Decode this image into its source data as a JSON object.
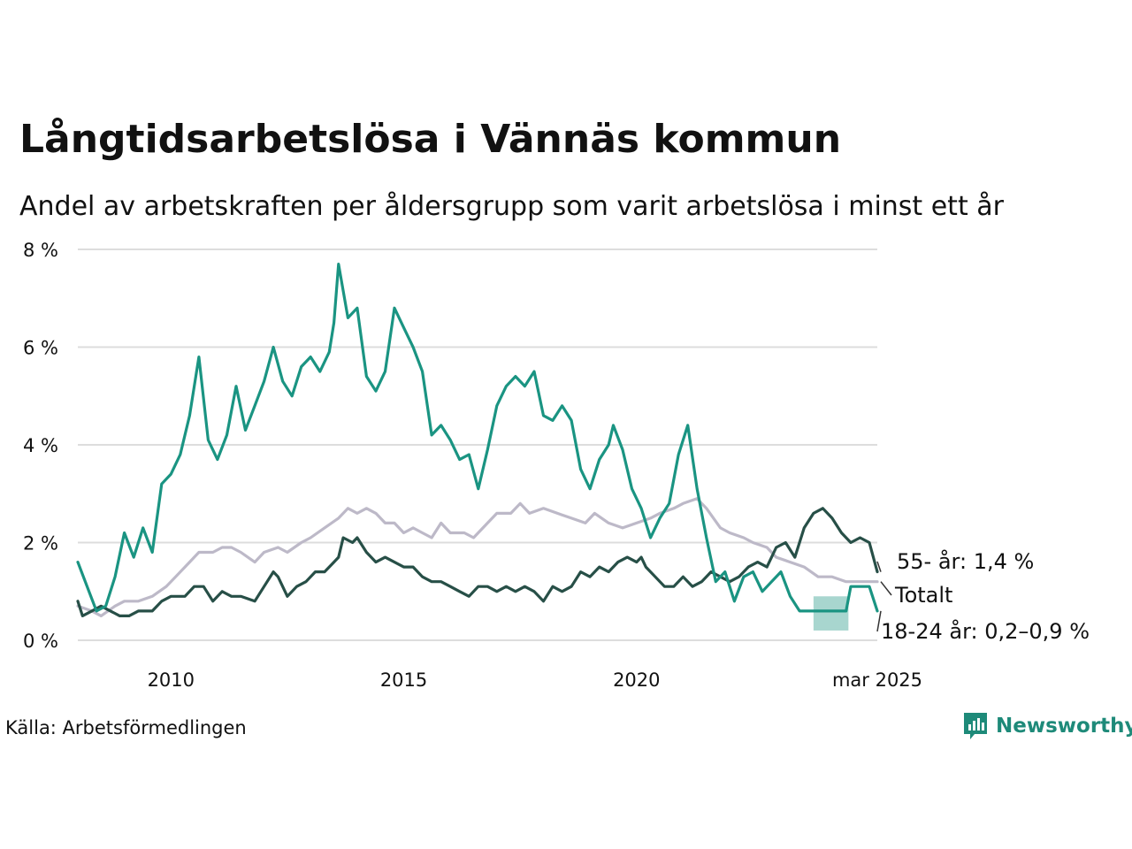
{
  "header": {
    "title": "Långtidsarbetslösa i Vännäs kommun",
    "subtitle": "Andel av arbetskraften per åldersgrupp som varit arbetslösa i minst ett år"
  },
  "footer": {
    "source": "Källa: Arbetsförmedlingen",
    "brand": "Newsworthy"
  },
  "colors": {
    "youth": "#1a9482",
    "youth_band": "#a8d6cf",
    "senior": "#274f47",
    "total": "#bdb9c8",
    "grid": "#dddddd"
  },
  "chart_data": {
    "type": "line",
    "title": "Långtidsarbetslösa i Vännäs kommun",
    "subtitle": "Andel av arbetskraften per åldersgrupp som varit arbetslösa i minst ett år",
    "xlabel": "",
    "ylabel": "",
    "x_range": [
      2008.0,
      2025.17
    ],
    "ylim": [
      0,
      8
    ],
    "x_ticks": [
      {
        "value": 2010,
        "label": "2010"
      },
      {
        "value": 2015,
        "label": "2015"
      },
      {
        "value": 2020,
        "label": "2020"
      },
      {
        "value": 2025.17,
        "label": "mar 2025"
      }
    ],
    "y_ticks": [
      {
        "value": 0,
        "label": "0 %"
      },
      {
        "value": 2,
        "label": "2 %"
      },
      {
        "value": 4,
        "label": "4 %"
      },
      {
        "value": 6,
        "label": "6 %"
      },
      {
        "value": 8,
        "label": "8 %"
      }
    ],
    "grid": true,
    "legend": "direct-labels-right",
    "end_labels": [
      {
        "series": "55- år",
        "text": "55- år: 1,4 %"
      },
      {
        "series": "Totalt",
        "text": "Totalt"
      },
      {
        "series": "18-24 år",
        "text": "18-24 år: 0,2–0,9 %"
      }
    ],
    "series": [
      {
        "name": "Totalt",
        "points": [
          [
            2008.0,
            0.7
          ],
          [
            2008.3,
            0.6
          ],
          [
            2008.5,
            0.5
          ],
          [
            2008.8,
            0.7
          ],
          [
            2009.0,
            0.8
          ],
          [
            2009.3,
            0.8
          ],
          [
            2009.6,
            0.9
          ],
          [
            2009.9,
            1.1
          ],
          [
            2010.1,
            1.3
          ],
          [
            2010.4,
            1.6
          ],
          [
            2010.6,
            1.8
          ],
          [
            2010.9,
            1.8
          ],
          [
            2011.1,
            1.9
          ],
          [
            2011.3,
            1.9
          ],
          [
            2011.5,
            1.8
          ],
          [
            2011.8,
            1.6
          ],
          [
            2012.0,
            1.8
          ],
          [
            2012.3,
            1.9
          ],
          [
            2012.5,
            1.8
          ],
          [
            2012.8,
            2.0
          ],
          [
            2013.0,
            2.1
          ],
          [
            2013.3,
            2.3
          ],
          [
            2013.6,
            2.5
          ],
          [
            2013.8,
            2.7
          ],
          [
            2014.0,
            2.6
          ],
          [
            2014.2,
            2.7
          ],
          [
            2014.4,
            2.6
          ],
          [
            2014.6,
            2.4
          ],
          [
            2014.8,
            2.4
          ],
          [
            2015.0,
            2.2
          ],
          [
            2015.2,
            2.3
          ],
          [
            2015.4,
            2.2
          ],
          [
            2015.6,
            2.1
          ],
          [
            2015.8,
            2.4
          ],
          [
            2016.0,
            2.2
          ],
          [
            2016.3,
            2.2
          ],
          [
            2016.5,
            2.1
          ],
          [
            2016.8,
            2.4
          ],
          [
            2017.0,
            2.6
          ],
          [
            2017.3,
            2.6
          ],
          [
            2017.5,
            2.8
          ],
          [
            2017.7,
            2.6
          ],
          [
            2018.0,
            2.7
          ],
          [
            2018.3,
            2.6
          ],
          [
            2018.6,
            2.5
          ],
          [
            2018.9,
            2.4
          ],
          [
            2019.1,
            2.6
          ],
          [
            2019.4,
            2.4
          ],
          [
            2019.7,
            2.3
          ],
          [
            2020.0,
            2.4
          ],
          [
            2020.3,
            2.5
          ],
          [
            2020.5,
            2.6
          ],
          [
            2020.8,
            2.7
          ],
          [
            2021.0,
            2.8
          ],
          [
            2021.3,
            2.9
          ],
          [
            2021.5,
            2.7
          ],
          [
            2021.8,
            2.3
          ],
          [
            2022.0,
            2.2
          ],
          [
            2022.3,
            2.1
          ],
          [
            2022.5,
            2.0
          ],
          [
            2022.8,
            1.9
          ],
          [
            2023.0,
            1.7
          ],
          [
            2023.3,
            1.6
          ],
          [
            2023.6,
            1.5
          ],
          [
            2023.9,
            1.3
          ],
          [
            2024.2,
            1.3
          ],
          [
            2024.5,
            1.2
          ],
          [
            2024.8,
            1.2
          ],
          [
            2025.17,
            1.2
          ]
        ]
      },
      {
        "name": "55- år",
        "points": [
          [
            2008.0,
            0.8
          ],
          [
            2008.1,
            0.5
          ],
          [
            2008.3,
            0.6
          ],
          [
            2008.5,
            0.7
          ],
          [
            2008.7,
            0.6
          ],
          [
            2008.9,
            0.5
          ],
          [
            2009.1,
            0.5
          ],
          [
            2009.3,
            0.6
          ],
          [
            2009.6,
            0.6
          ],
          [
            2009.8,
            0.8
          ],
          [
            2010.0,
            0.9
          ],
          [
            2010.3,
            0.9
          ],
          [
            2010.5,
            1.1
          ],
          [
            2010.7,
            1.1
          ],
          [
            2010.9,
            0.8
          ],
          [
            2011.1,
            1.0
          ],
          [
            2011.3,
            0.9
          ],
          [
            2011.5,
            0.9
          ],
          [
            2011.8,
            0.8
          ],
          [
            2012.0,
            1.1
          ],
          [
            2012.2,
            1.4
          ],
          [
            2012.3,
            1.3
          ],
          [
            2012.5,
            0.9
          ],
          [
            2012.7,
            1.1
          ],
          [
            2012.9,
            1.2
          ],
          [
            2013.1,
            1.4
          ],
          [
            2013.3,
            1.4
          ],
          [
            2013.5,
            1.6
          ],
          [
            2013.6,
            1.7
          ],
          [
            2013.7,
            2.1
          ],
          [
            2013.9,
            2.0
          ],
          [
            2014.0,
            2.1
          ],
          [
            2014.2,
            1.8
          ],
          [
            2014.4,
            1.6
          ],
          [
            2014.6,
            1.7
          ],
          [
            2014.8,
            1.6
          ],
          [
            2015.0,
            1.5
          ],
          [
            2015.2,
            1.5
          ],
          [
            2015.4,
            1.3
          ],
          [
            2015.6,
            1.2
          ],
          [
            2015.8,
            1.2
          ],
          [
            2016.0,
            1.1
          ],
          [
            2016.2,
            1.0
          ],
          [
            2016.4,
            0.9
          ],
          [
            2016.6,
            1.1
          ],
          [
            2016.8,
            1.1
          ],
          [
            2017.0,
            1.0
          ],
          [
            2017.2,
            1.1
          ],
          [
            2017.4,
            1.0
          ],
          [
            2017.6,
            1.1
          ],
          [
            2017.8,
            1.0
          ],
          [
            2018.0,
            0.8
          ],
          [
            2018.2,
            1.1
          ],
          [
            2018.4,
            1.0
          ],
          [
            2018.6,
            1.1
          ],
          [
            2018.8,
            1.4
          ],
          [
            2019.0,
            1.3
          ],
          [
            2019.2,
            1.5
          ],
          [
            2019.4,
            1.4
          ],
          [
            2019.6,
            1.6
          ],
          [
            2019.8,
            1.7
          ],
          [
            2020.0,
            1.6
          ],
          [
            2020.1,
            1.7
          ],
          [
            2020.2,
            1.5
          ],
          [
            2020.4,
            1.3
          ],
          [
            2020.6,
            1.1
          ],
          [
            2020.8,
            1.1
          ],
          [
            2021.0,
            1.3
          ],
          [
            2021.2,
            1.1
          ],
          [
            2021.4,
            1.2
          ],
          [
            2021.6,
            1.4
          ],
          [
            2021.8,
            1.3
          ],
          [
            2022.0,
            1.2
          ],
          [
            2022.2,
            1.3
          ],
          [
            2022.4,
            1.5
          ],
          [
            2022.6,
            1.6
          ],
          [
            2022.8,
            1.5
          ],
          [
            2023.0,
            1.9
          ],
          [
            2023.2,
            2.0
          ],
          [
            2023.4,
            1.7
          ],
          [
            2023.6,
            2.3
          ],
          [
            2023.8,
            2.6
          ],
          [
            2024.0,
            2.7
          ],
          [
            2024.2,
            2.5
          ],
          [
            2024.4,
            2.2
          ],
          [
            2024.6,
            2.0
          ],
          [
            2024.8,
            2.1
          ],
          [
            2025.0,
            2.0
          ],
          [
            2025.17,
            1.4
          ]
        ]
      },
      {
        "name": "18-24 år",
        "points": [
          [
            2008.0,
            1.6
          ],
          [
            2008.2,
            1.1
          ],
          [
            2008.4,
            0.6
          ],
          [
            2008.6,
            0.7
          ],
          [
            2008.8,
            1.3
          ],
          [
            2009.0,
            2.2
          ],
          [
            2009.2,
            1.7
          ],
          [
            2009.4,
            2.3
          ],
          [
            2009.6,
            1.8
          ],
          [
            2009.8,
            3.2
          ],
          [
            2010.0,
            3.4
          ],
          [
            2010.2,
            3.8
          ],
          [
            2010.4,
            4.6
          ],
          [
            2010.6,
            5.8
          ],
          [
            2010.8,
            4.1
          ],
          [
            2011.0,
            3.7
          ],
          [
            2011.2,
            4.2
          ],
          [
            2011.4,
            5.2
          ],
          [
            2011.6,
            4.3
          ],
          [
            2011.8,
            4.8
          ],
          [
            2012.0,
            5.3
          ],
          [
            2012.2,
            6.0
          ],
          [
            2012.4,
            5.3
          ],
          [
            2012.6,
            5.0
          ],
          [
            2012.8,
            5.6
          ],
          [
            2013.0,
            5.8
          ],
          [
            2013.2,
            5.5
          ],
          [
            2013.4,
            5.9
          ],
          [
            2013.5,
            6.5
          ],
          [
            2013.6,
            7.7
          ],
          [
            2013.8,
            6.6
          ],
          [
            2014.0,
            6.8
          ],
          [
            2014.2,
            5.4
          ],
          [
            2014.4,
            5.1
          ],
          [
            2014.6,
            5.5
          ],
          [
            2014.8,
            6.8
          ],
          [
            2015.0,
            6.4
          ],
          [
            2015.2,
            6.0
          ],
          [
            2015.4,
            5.5
          ],
          [
            2015.6,
            4.2
          ],
          [
            2015.8,
            4.4
          ],
          [
            2016.0,
            4.1
          ],
          [
            2016.2,
            3.7
          ],
          [
            2016.4,
            3.8
          ],
          [
            2016.6,
            3.1
          ],
          [
            2016.8,
            3.9
          ],
          [
            2017.0,
            4.8
          ],
          [
            2017.2,
            5.2
          ],
          [
            2017.4,
            5.4
          ],
          [
            2017.6,
            5.2
          ],
          [
            2017.8,
            5.5
          ],
          [
            2018.0,
            4.6
          ],
          [
            2018.2,
            4.5
          ],
          [
            2018.4,
            4.8
          ],
          [
            2018.6,
            4.5
          ],
          [
            2018.8,
            3.5
          ],
          [
            2019.0,
            3.1
          ],
          [
            2019.2,
            3.7
          ],
          [
            2019.4,
            4.0
          ],
          [
            2019.5,
            4.4
          ],
          [
            2019.7,
            3.9
          ],
          [
            2019.9,
            3.1
          ],
          [
            2020.1,
            2.7
          ],
          [
            2020.3,
            2.1
          ],
          [
            2020.5,
            2.5
          ],
          [
            2020.7,
            2.8
          ],
          [
            2020.9,
            3.8
          ],
          [
            2021.1,
            4.4
          ],
          [
            2021.3,
            3.1
          ],
          [
            2021.5,
            2.1
          ],
          [
            2021.7,
            1.2
          ],
          [
            2021.9,
            1.4
          ],
          [
            2022.1,
            0.8
          ],
          [
            2022.3,
            1.3
          ],
          [
            2022.5,
            1.4
          ],
          [
            2022.7,
            1.0
          ],
          [
            2022.9,
            1.2
          ],
          [
            2023.1,
            1.4
          ],
          [
            2023.3,
            0.9
          ],
          [
            2023.5,
            0.6
          ],
          [
            2023.7,
            0.6
          ],
          [
            2023.9,
            0.6
          ],
          [
            2024.1,
            0.6
          ],
          [
            2024.3,
            0.6
          ],
          [
            2024.5,
            0.6
          ],
          [
            2024.6,
            1.1
          ],
          [
            2024.8,
            1.1
          ],
          [
            2025.0,
            1.1
          ],
          [
            2025.17,
            0.6
          ]
        ]
      }
    ],
    "ranges": [
      {
        "series": "18-24 år",
        "x": [
          2023.8,
          2024.55
        ],
        "low": 0.2,
        "high": 0.9
      }
    ]
  }
}
